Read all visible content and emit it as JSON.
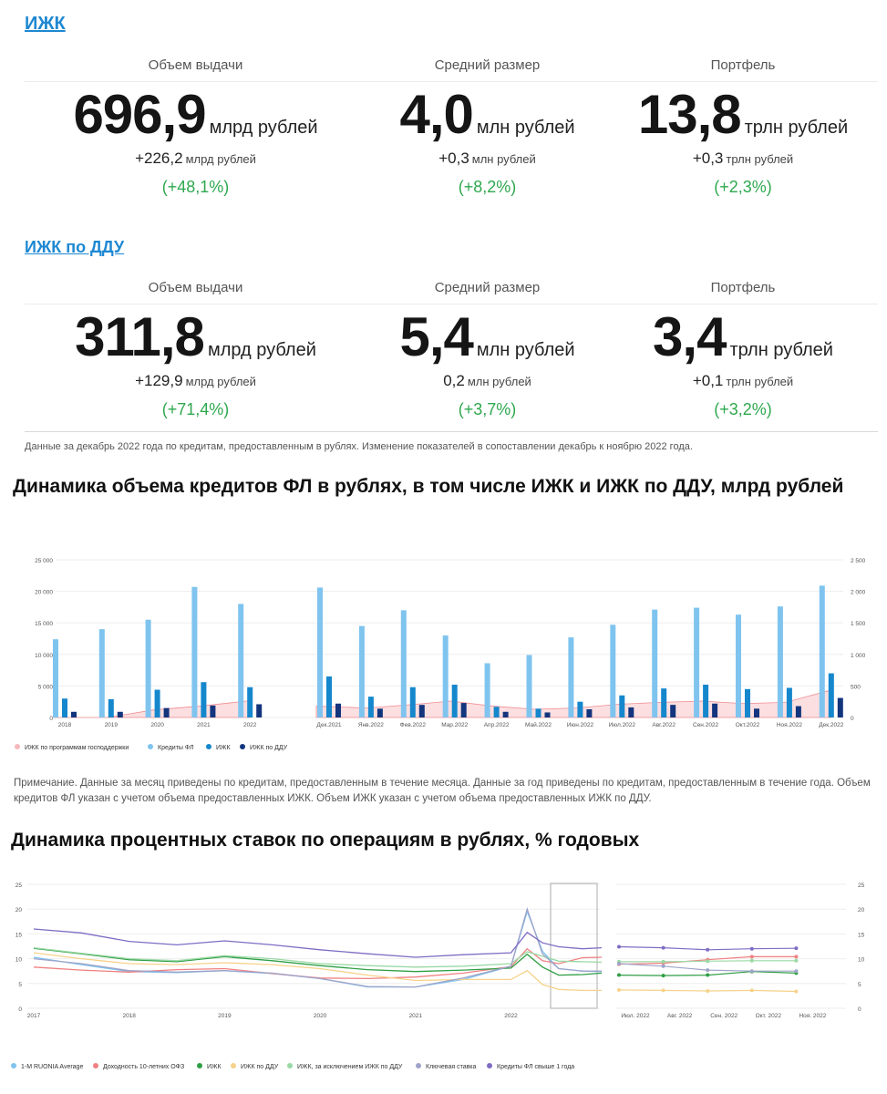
{
  "izhk": {
    "title": "ИЖК",
    "metrics": [
      {
        "label": "Объем выдачи",
        "value": "696,9",
        "unit": "млрд рублей",
        "delta": "+226,2",
        "delta_unit": "млрд рублей",
        "pct": "(+48,1%)"
      },
      {
        "label": "Средний размер",
        "value": "4,0",
        "unit": "млн рублей",
        "delta": "+0,3",
        "delta_unit": "млн рублей",
        "pct": "(+8,2%)"
      },
      {
        "label": "Портфель",
        "value": "13,8",
        "unit": "трлн рублей",
        "delta": "+0,3",
        "delta_unit": "трлн рублей",
        "pct": "(+2,3%)"
      }
    ]
  },
  "ddu": {
    "title": "ИЖК по ДДУ",
    "metrics": [
      {
        "label": "Объем выдачи",
        "value": "311,8",
        "unit": "млрд рублей",
        "delta": "+129,9",
        "delta_unit": "млрд рублей",
        "pct": "(+71,4%)"
      },
      {
        "label": "Средний размер",
        "value": "5,4",
        "unit": "млн рублей",
        "delta": "0,2",
        "delta_unit": "млн рублей",
        "pct": "(+3,7%)"
      },
      {
        "label": "Портфель",
        "value": "3,4",
        "unit": "трлн рублей",
        "delta": "+0,1",
        "delta_unit": "трлн рублей",
        "pct": "(+3,2%)"
      }
    ]
  },
  "data_note": "Данные за декабрь 2022 года по кредитам, предоставленным в рублях. Изменение показателей в сопоставлении декабрь к ноябрю 2022 года.",
  "chart1_heading": "Динамика объема кредитов ФЛ в рублях, в том числе ИЖК и ИЖК по ДДУ, млрд рублей",
  "chart1_note": "Примечание. Данные за месяц приведены по кредитам, предоставленным в течение месяца. Данные за год приведены по кредитам, предоставленным в течение года. Объем кредитов ФЛ указан с учетом объема предоставленных ИЖК. Объем ИЖК указан с учетом объема предоставленных ИЖК по ДДУ.",
  "chart2_heading": "Динамика процентных ставок по операциям в рублях, % годовых",
  "colors": {
    "fl": "#7fc4ef",
    "izhk": "#1587cc",
    "ddu": "#13357d",
    "support": "#f6b8bc"
  },
  "chart_data": [
    {
      "type": "bar",
      "panels": [
        {
          "categories": [
            "2018",
            "2019",
            "2020",
            "2021",
            "2022"
          ],
          "series": [
            {
              "name": "Кредиты ФЛ",
              "values": [
                12400,
                14000,
                15500,
                20700,
                18000
              ]
            },
            {
              "name": "ИЖК",
              "values": [
                3000,
                2900,
                4400,
                5600,
                4800
              ]
            },
            {
              "name": "ИЖК по ДДУ",
              "values": [
                900,
                900,
                1500,
                1900,
                2100
              ]
            },
            {
              "name": "ИЖК по программам господдержки",
              "values": [
                0,
                0,
                1200,
                1800,
                2600
              ]
            }
          ]
        },
        {
          "categories": [
            "Дек.2021",
            "Янв.2022",
            "Фев.2022",
            "Мар.2022",
            "Апр.2022",
            "Май.2022",
            "Июн.2022",
            "Июл.2022",
            "Авг.2022",
            "Сен.2022",
            "Окт.2022",
            "Ноя.2022",
            "Дек.2022"
          ],
          "series": [
            {
              "name": "Кредиты ФЛ",
              "values": [
                2060,
                1450,
                1700,
                1300,
                860,
                990,
                1270,
                1470,
                1710,
                1740,
                1630,
                1760,
                2090
              ]
            },
            {
              "name": "ИЖК",
              "values": [
                650,
                330,
                480,
                520,
                170,
                140,
                250,
                350,
                460,
                520,
                450,
                470,
                700
              ]
            },
            {
              "name": "ИЖК по ДДУ",
              "values": [
                220,
                140,
                200,
                230,
                90,
                80,
                130,
                160,
                200,
                220,
                140,
                180,
                310
              ]
            },
            {
              "name": "ИЖК по программам господдержки",
              "values": [
                180,
                150,
                200,
                260,
                180,
                130,
                150,
                210,
                240,
                260,
                220,
                240,
                420
              ]
            }
          ]
        }
      ],
      "y_left_ticks": [
        "0",
        "5 000",
        "10 000",
        "15 000",
        "20 000",
        "25 000"
      ],
      "y_right_ticks": [
        "0",
        "500",
        "1 000",
        "1 500",
        "2 000",
        "2 500"
      ],
      "ylim_left": [
        0,
        25000
      ],
      "ylim_right": [
        0,
        2500
      ],
      "legend": [
        "ИЖК по программам господдержки",
        "Кредиты ФЛ",
        "ИЖК",
        "ИЖК по ДДУ"
      ],
      "legend_position": "bottom-left"
    },
    {
      "type": "line",
      "ylim": [
        0,
        25
      ],
      "y_ticks": [
        "0",
        "5",
        "10",
        "15",
        "20",
        "25"
      ],
      "x_ticks_left": [
        "2017",
        "2018",
        "2019",
        "2020",
        "2021",
        "2022"
      ],
      "x_ticks_right": [
        "Июл. 2022",
        "Авг. 2022",
        "Сен. 2022",
        "Окт. 2022",
        "Ноя. 2022"
      ],
      "series_left_x": [
        2017.0,
        2017.5,
        2018.0,
        2018.5,
        2019.0,
        2019.5,
        2020.0,
        2020.5,
        2021.0,
        2021.5,
        2022.0,
        2022.17,
        2022.33,
        2022.5,
        2022.75,
        2022.95
      ],
      "series": [
        {
          "name": "1-M RUONIA Average",
          "color": "#7fc4ef",
          "left": [
            10.3,
            8.8,
            7.4,
            7.2,
            7.6,
            7.0,
            6.0,
            4.3,
            4.3,
            5.8,
            8.5,
            19.5,
            11.5,
            8.0,
            7.5,
            7.4
          ],
          "right": [
            null,
            null,
            null,
            null,
            null
          ]
        },
        {
          "name": "Доходность 10-летних ОФЗ",
          "color": "#f08080",
          "left": [
            8.3,
            7.7,
            7.3,
            7.8,
            8.0,
            7.0,
            6.1,
            6.0,
            6.3,
            7.1,
            8.4,
            12.0,
            9.6,
            9.0,
            10.2,
            10.3
          ],
          "right": [
            8.9,
            9.1,
            9.8,
            10.4,
            10.4
          ]
        },
        {
          "name": "ИЖК",
          "color": "#2f9e44",
          "left": [
            12.1,
            11.0,
            9.8,
            9.4,
            10.4,
            9.6,
            8.6,
            7.8,
            7.4,
            7.7,
            8.1,
            10.9,
            8.3,
            6.7,
            6.8,
            7.1
          ],
          "right": [
            6.7,
            6.6,
            6.7,
            7.4,
            7.1
          ]
        },
        {
          "name": "ИЖК по ДДУ",
          "color": "#f6d28a",
          "left": [
            11.2,
            10.0,
            9.0,
            8.8,
            9.2,
            8.8,
            8.0,
            6.7,
            5.6,
            5.8,
            5.8,
            7.6,
            4.8,
            3.8,
            3.6,
            3.6
          ],
          "right": [
            3.7,
            3.6,
            3.5,
            3.6,
            3.4
          ]
        },
        {
          "name": "ИЖК, за исключением ИЖК по ДДУ",
          "color": "#9ad9a4",
          "left": [
            12.2,
            11.1,
            10.0,
            9.6,
            10.6,
            10.0,
            9.0,
            8.6,
            8.3,
            8.5,
            9.0,
            11.4,
            10.5,
            9.5,
            9.4,
            9.3
          ],
          "right": [
            9.4,
            9.4,
            9.5,
            9.6,
            9.6
          ]
        },
        {
          "name": "Ключевая ставка",
          "color": "#9fa3c9",
          "left": [
            10.0,
            9.0,
            7.6,
            7.3,
            7.6,
            7.1,
            6.0,
            4.4,
            4.3,
            6.1,
            8.5,
            20.0,
            11.0,
            8.0,
            7.5,
            7.5
          ],
          "right": [
            9.0,
            8.5,
            7.7,
            7.5,
            7.5
          ]
        },
        {
          "name": "Кредиты ФЛ свыше 1 года",
          "color": "#7f6cc4",
          "left": [
            16.0,
            15.2,
            13.5,
            12.8,
            13.6,
            12.8,
            11.8,
            11.0,
            10.3,
            10.8,
            11.2,
            15.3,
            13.2,
            12.4,
            12.0,
            12.2
          ],
          "right": [
            12.4,
            12.2,
            11.8,
            12.0,
            12.1
          ]
        }
      ],
      "legend_position": "bottom-left"
    }
  ]
}
